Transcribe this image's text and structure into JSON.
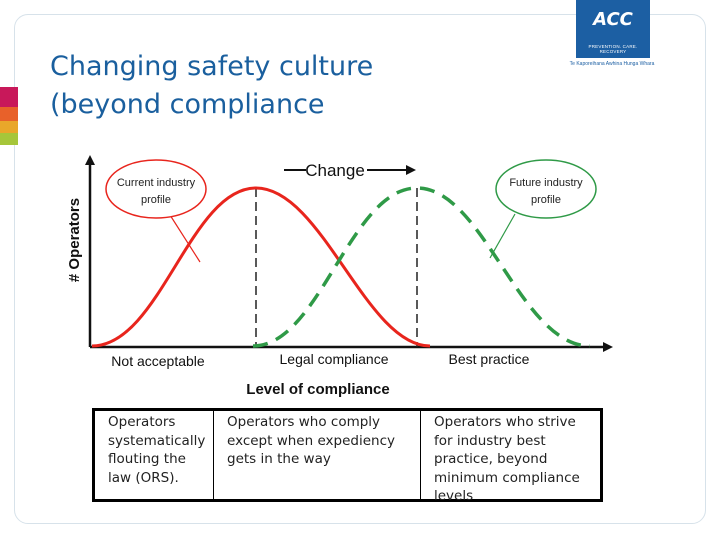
{
  "slide": {
    "title_line1": "Changing safety culture",
    "title_line2": "(beyond compliance"
  },
  "colors": {
    "title": "#1a5f9e",
    "current_curve": "#e8251d",
    "future_curve": "#2f9a47",
    "logo_bg": "#1c5fa3",
    "accent_bar": [
      "#c8185a",
      "#e8612a",
      "#e9a72a",
      "#a6c63a"
    ]
  },
  "logo": {
    "mark": "ACC",
    "tagline": "PREVENTION. CARE. RECOVERY",
    "sub": "Te Kaporeihana Awhina Hunga Whara"
  },
  "diagram": {
    "y_axis_label": "# Operators",
    "x_axis_title": "Level of compliance",
    "change_label": "Change",
    "callout_current_line1": "Current industry",
    "callout_current_line2": "profile",
    "callout_future_line1": "Future industry",
    "callout_future_line2": "profile",
    "zone_labels": [
      "Not acceptable",
      "Legal compliance",
      "Best practice"
    ]
  },
  "table": {
    "col1": [
      "Operators",
      "systematically",
      "flouting the",
      "law (ORS)."
    ],
    "col2": [
      "Operators who comply",
      "except when expediency",
      "gets in the way"
    ],
    "col3": [
      "Operators who strive",
      "for industry best",
      "practice, beyond",
      "minimum compliance",
      "levels"
    ]
  }
}
